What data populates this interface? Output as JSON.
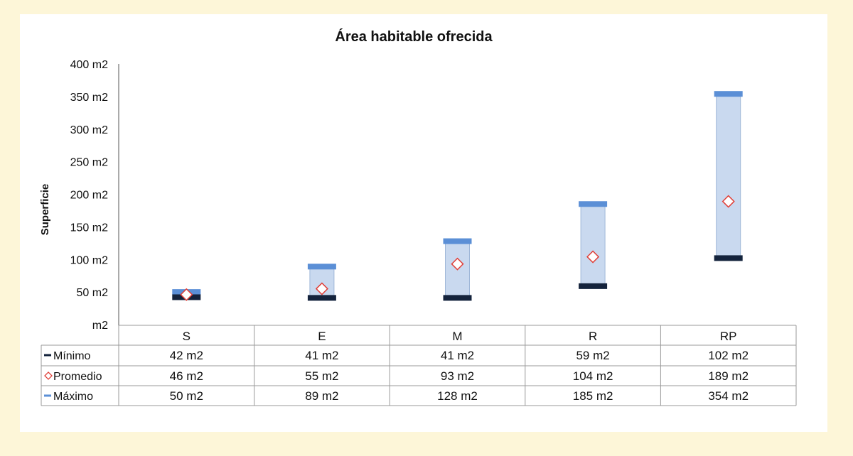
{
  "chart_data": {
    "type": "bar",
    "title": "Área habitable ofrecida",
    "ylabel": "Superficie",
    "xlabel": "",
    "ylim": [
      0,
      400
    ],
    "yticks": [
      "m2",
      "50 m2",
      "100 m2",
      "150 m2",
      "200 m2",
      "250 m2",
      "300 m2",
      "350 m2",
      "400 m2"
    ],
    "categories": [
      "S",
      "E",
      "M",
      "R",
      "RP"
    ],
    "series": [
      {
        "name": "Mínimo",
        "marker": "dash",
        "values": [
          42,
          41,
          41,
          59,
          102
        ],
        "labels": [
          "42 m2",
          "41 m2",
          "41 m2",
          "59 m2",
          "102 m2"
        ]
      },
      {
        "name": "Promedio",
        "marker": "diamond",
        "values": [
          46,
          55,
          93,
          104,
          189
        ],
        "labels": [
          "46 m2",
          "55 m2",
          "93 m2",
          "104 m2",
          "189 m2"
        ]
      },
      {
        "name": "Máximo",
        "marker": "dash",
        "values": [
          50,
          89,
          128,
          185,
          354
        ],
        "labels": [
          "50 m2",
          "89 m2",
          "128 m2",
          "185 m2",
          "354 m2"
        ]
      }
    ],
    "legend": "data-table-left",
    "grid": false,
    "colors": {
      "minimo": "#14233c",
      "promedio": "#e0413a",
      "maximo": "#5b8fd6",
      "range_fill": "#c9d9ef",
      "range_stroke": "#9fb7d8"
    }
  }
}
